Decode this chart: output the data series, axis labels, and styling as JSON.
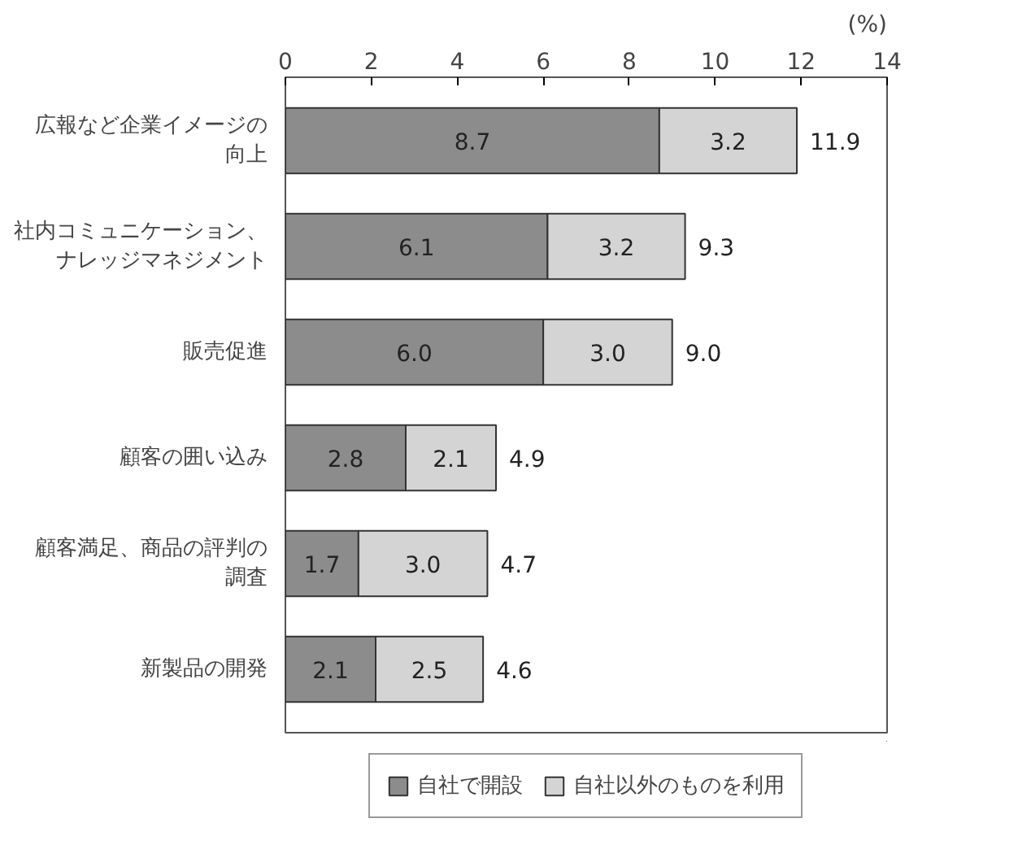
{
  "chart_data": {
    "type": "bar",
    "orientation": "horizontal",
    "stacked": true,
    "categories": [
      "広報など企業イメージの向上",
      "社内コミュニケーション、ナレッジマネジメント",
      "販売促進",
      "顧客の囲い込み",
      "顧客満足、商品の評判の調査",
      "新製品の開発"
    ],
    "series": [
      {
        "name": "自社で開設",
        "color": "#8c8c8c",
        "values": [
          8.7,
          6.1,
          6.0,
          2.8,
          1.7,
          2.1
        ],
        "value_labels": [
          "8.7",
          "6.1",
          "6.0",
          "2.8",
          "1.7",
          "2.1"
        ]
      },
      {
        "name": "自社以外のものを利用",
        "color": "#d4d4d4",
        "values": [
          3.2,
          3.2,
          3.0,
          2.1,
          3.0,
          2.5
        ],
        "value_labels": [
          "3.2",
          "3.2",
          "3.0",
          "2.1",
          "3.0",
          "2.5"
        ]
      }
    ],
    "totals": [
      "11.9",
      "9.3",
      "9.0",
      "4.9",
      "4.7",
      "4.6"
    ],
    "xlabel": "(%)",
    "xlim": [
      0,
      14
    ],
    "xticks": [
      0,
      2,
      4,
      6,
      8,
      10,
      12,
      14
    ],
    "grid": false,
    "legend": "bottom"
  }
}
